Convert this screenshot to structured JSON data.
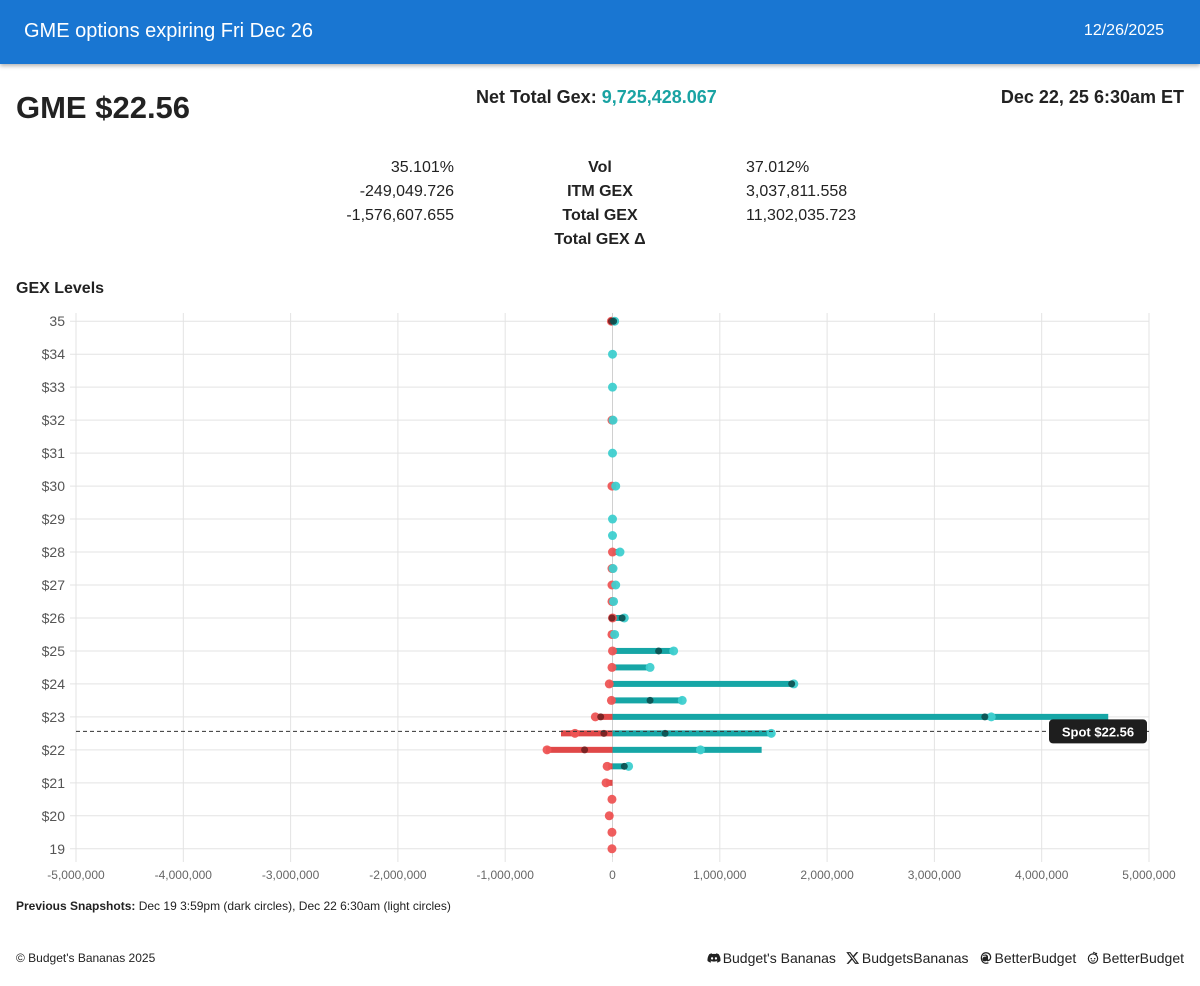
{
  "header": {
    "title": "GME options expiring Fri Dec 26",
    "date": "12/26/2025"
  },
  "summary": {
    "ticker_price": "GME $22.56",
    "net_gex_label": "Net Total Gex:",
    "net_gex_value": "9,725,428.067",
    "timestamp": "Dec 22, 25 6:30am ET"
  },
  "stats": {
    "left": [
      "35.101%",
      "-249,049.726",
      "-1,576,607.655",
      ""
    ],
    "labels": [
      "Vol",
      "ITM GEX",
      "Total GEX",
      "Total GEX Δ"
    ],
    "right": [
      "37.012%",
      "3,037,811.558",
      "11,302,035.723",
      ""
    ]
  },
  "section_title": "GEX Levels",
  "chart_data": {
    "type": "bar",
    "orientation": "horizontal",
    "title": "GEX Levels",
    "x_ticks": [
      "-5,000,000",
      "-4,000,000",
      "-3,000,000",
      "-2,000,000",
      "-1,000,000",
      "0",
      "1,000,000",
      "2,000,000",
      "3,000,000",
      "4,000,000",
      "5,000,000"
    ],
    "xlim": [
      -5000000,
      5000000
    ],
    "ylim": [
      18.75,
      35.25
    ],
    "y_ticks": [
      {
        "value": 35,
        "label": "35"
      },
      {
        "value": 34,
        "label": "$34"
      },
      {
        "value": 33,
        "label": "$33"
      },
      {
        "value": 32,
        "label": "$32"
      },
      {
        "value": 31,
        "label": "$31"
      },
      {
        "value": 30,
        "label": "$30"
      },
      {
        "value": 29,
        "label": "$29"
      },
      {
        "value": 28,
        "label": "$28"
      },
      {
        "value": 27,
        "label": "$27"
      },
      {
        "value": 26,
        "label": "$26"
      },
      {
        "value": 25,
        "label": "$25"
      },
      {
        "value": 24,
        "label": "$24"
      },
      {
        "value": 23,
        "label": "$23"
      },
      {
        "value": 22,
        "label": "$22"
      },
      {
        "value": 21,
        "label": "$21"
      },
      {
        "value": 20,
        "label": "$20"
      },
      {
        "value": 19,
        "label": "19"
      }
    ],
    "grid": true,
    "spot": {
      "value": 22.56,
      "label": "Spot $22.56"
    },
    "colors": {
      "call": "#16a6a6",
      "put": "#e04848",
      "call_light": "#3ecfcf",
      "put_light": "#ee5555",
      "dark_circle": "#0b4f4f"
    },
    "strikes": [
      {
        "strike": 35,
        "put": -15000,
        "call": 15000,
        "put_prev": -10000,
        "call_prev": 10000,
        "put_light": -10000,
        "call_light": 20000
      },
      {
        "strike": 34,
        "put": 0,
        "call": 0,
        "put_prev": null,
        "call_prev": null,
        "put_light": null,
        "call_light": 0
      },
      {
        "strike": 33,
        "put": 0,
        "call": 0,
        "put_prev": null,
        "call_prev": null,
        "put_light": null,
        "call_light": 0
      },
      {
        "strike": 32,
        "put": -10000,
        "call": 10000,
        "put_prev": null,
        "call_prev": null,
        "put_light": -5000,
        "call_light": 5000
      },
      {
        "strike": 31,
        "put": 0,
        "call": 0,
        "put_prev": null,
        "call_prev": null,
        "put_light": null,
        "call_light": 0
      },
      {
        "strike": 30,
        "put": -10000,
        "call": 30000,
        "put_prev": null,
        "call_prev": null,
        "put_light": -5000,
        "call_light": 30000
      },
      {
        "strike": 29,
        "put": 0,
        "call": 0,
        "put_prev": null,
        "call_prev": null,
        "put_light": null,
        "call_light": 0
      },
      {
        "strike": 28.5,
        "put": 0,
        "call": 0,
        "put_prev": null,
        "call_prev": null,
        "put_light": null,
        "call_light": 0
      },
      {
        "strike": 28,
        "put": 0,
        "call": 60000,
        "put_prev": null,
        "call_prev": null,
        "put_light": 0,
        "call_light": 70000
      },
      {
        "strike": 27.5,
        "put": -5000,
        "call": 0,
        "put_prev": null,
        "call_prev": null,
        "put_light": -5000,
        "call_light": 5000
      },
      {
        "strike": 27,
        "put": -5000,
        "call": 30000,
        "put_prev": null,
        "call_prev": null,
        "put_light": -5000,
        "call_light": 30000
      },
      {
        "strike": 26.5,
        "put": -5000,
        "call": 10000,
        "put_prev": null,
        "call_prev": null,
        "put_light": -5000,
        "call_light": 10000
      },
      {
        "strike": 26,
        "put": -5000,
        "call": 120000,
        "put_prev": -5000,
        "call_prev": 90000,
        "put_light": 0,
        "call_light": 110000
      },
      {
        "strike": 25.5,
        "put": -10000,
        "call": 10000,
        "put_prev": null,
        "call_prev": null,
        "put_light": -5000,
        "call_light": 20000
      },
      {
        "strike": 25,
        "put": 0,
        "call": 570000,
        "put_prev": null,
        "call_prev": 430000,
        "put_light": 0,
        "call_light": 570000
      },
      {
        "strike": 24.5,
        "put": 0,
        "call": 330000,
        "put_prev": null,
        "call_prev": null,
        "put_light": -5000,
        "call_light": 350000
      },
      {
        "strike": 24,
        "put": -30000,
        "call": 1690000,
        "put_prev": null,
        "call_prev": 1670000,
        "put_light": -30000,
        "call_light": 1690000
      },
      {
        "strike": 23.5,
        "put": -10000,
        "call": 650000,
        "put_prev": null,
        "call_prev": 350000,
        "put_light": -10000,
        "call_light": 650000
      },
      {
        "strike": 23,
        "put": -130000,
        "call": 4620000,
        "put_prev": -110000,
        "call_prev": 3470000,
        "put_light": -160000,
        "call_light": 3530000
      },
      {
        "strike": 22.5,
        "put": -480000,
        "call": 1500000,
        "put_prev": -80000,
        "call_prev": 490000,
        "put_light": -350000,
        "call_light": 1480000
      },
      {
        "strike": 22,
        "put": -620000,
        "call": 1390000,
        "put_prev": -260000,
        "call_prev": null,
        "put_light": -610000,
        "call_light": 820000
      },
      {
        "strike": 21.5,
        "put": -40000,
        "call": 140000,
        "put_prev": null,
        "call_prev": 110000,
        "put_light": -50000,
        "call_light": 150000
      },
      {
        "strike": 21,
        "put": -60000,
        "call": 0,
        "put_prev": null,
        "call_prev": null,
        "put_light": -60000,
        "call_light": null
      },
      {
        "strike": 20.5,
        "put": 0,
        "call": 0,
        "put_prev": null,
        "call_prev": null,
        "put_light": -5000,
        "call_light": null
      },
      {
        "strike": 20,
        "put": -20000,
        "call": 0,
        "put_prev": null,
        "call_prev": null,
        "put_light": -30000,
        "call_light": null
      },
      {
        "strike": 19.5,
        "put": 0,
        "call": 0,
        "put_prev": null,
        "call_prev": null,
        "put_light": -5000,
        "call_light": null
      },
      {
        "strike": 19,
        "put": 0,
        "call": 0,
        "put_prev": null,
        "call_prev": null,
        "put_light": -5000,
        "call_light": null
      }
    ]
  },
  "snapshots": {
    "label": "Previous Snapshots:",
    "text": "Dec 19 3:59pm (dark circles), Dec 22 6:30am (light circles)"
  },
  "footer": {
    "copyright": "© Budget's Bananas 2025",
    "discord": "Budget's Bananas",
    "x": "BudgetsBananas",
    "threads": "BetterBudget",
    "reddit": "BetterBudget"
  }
}
